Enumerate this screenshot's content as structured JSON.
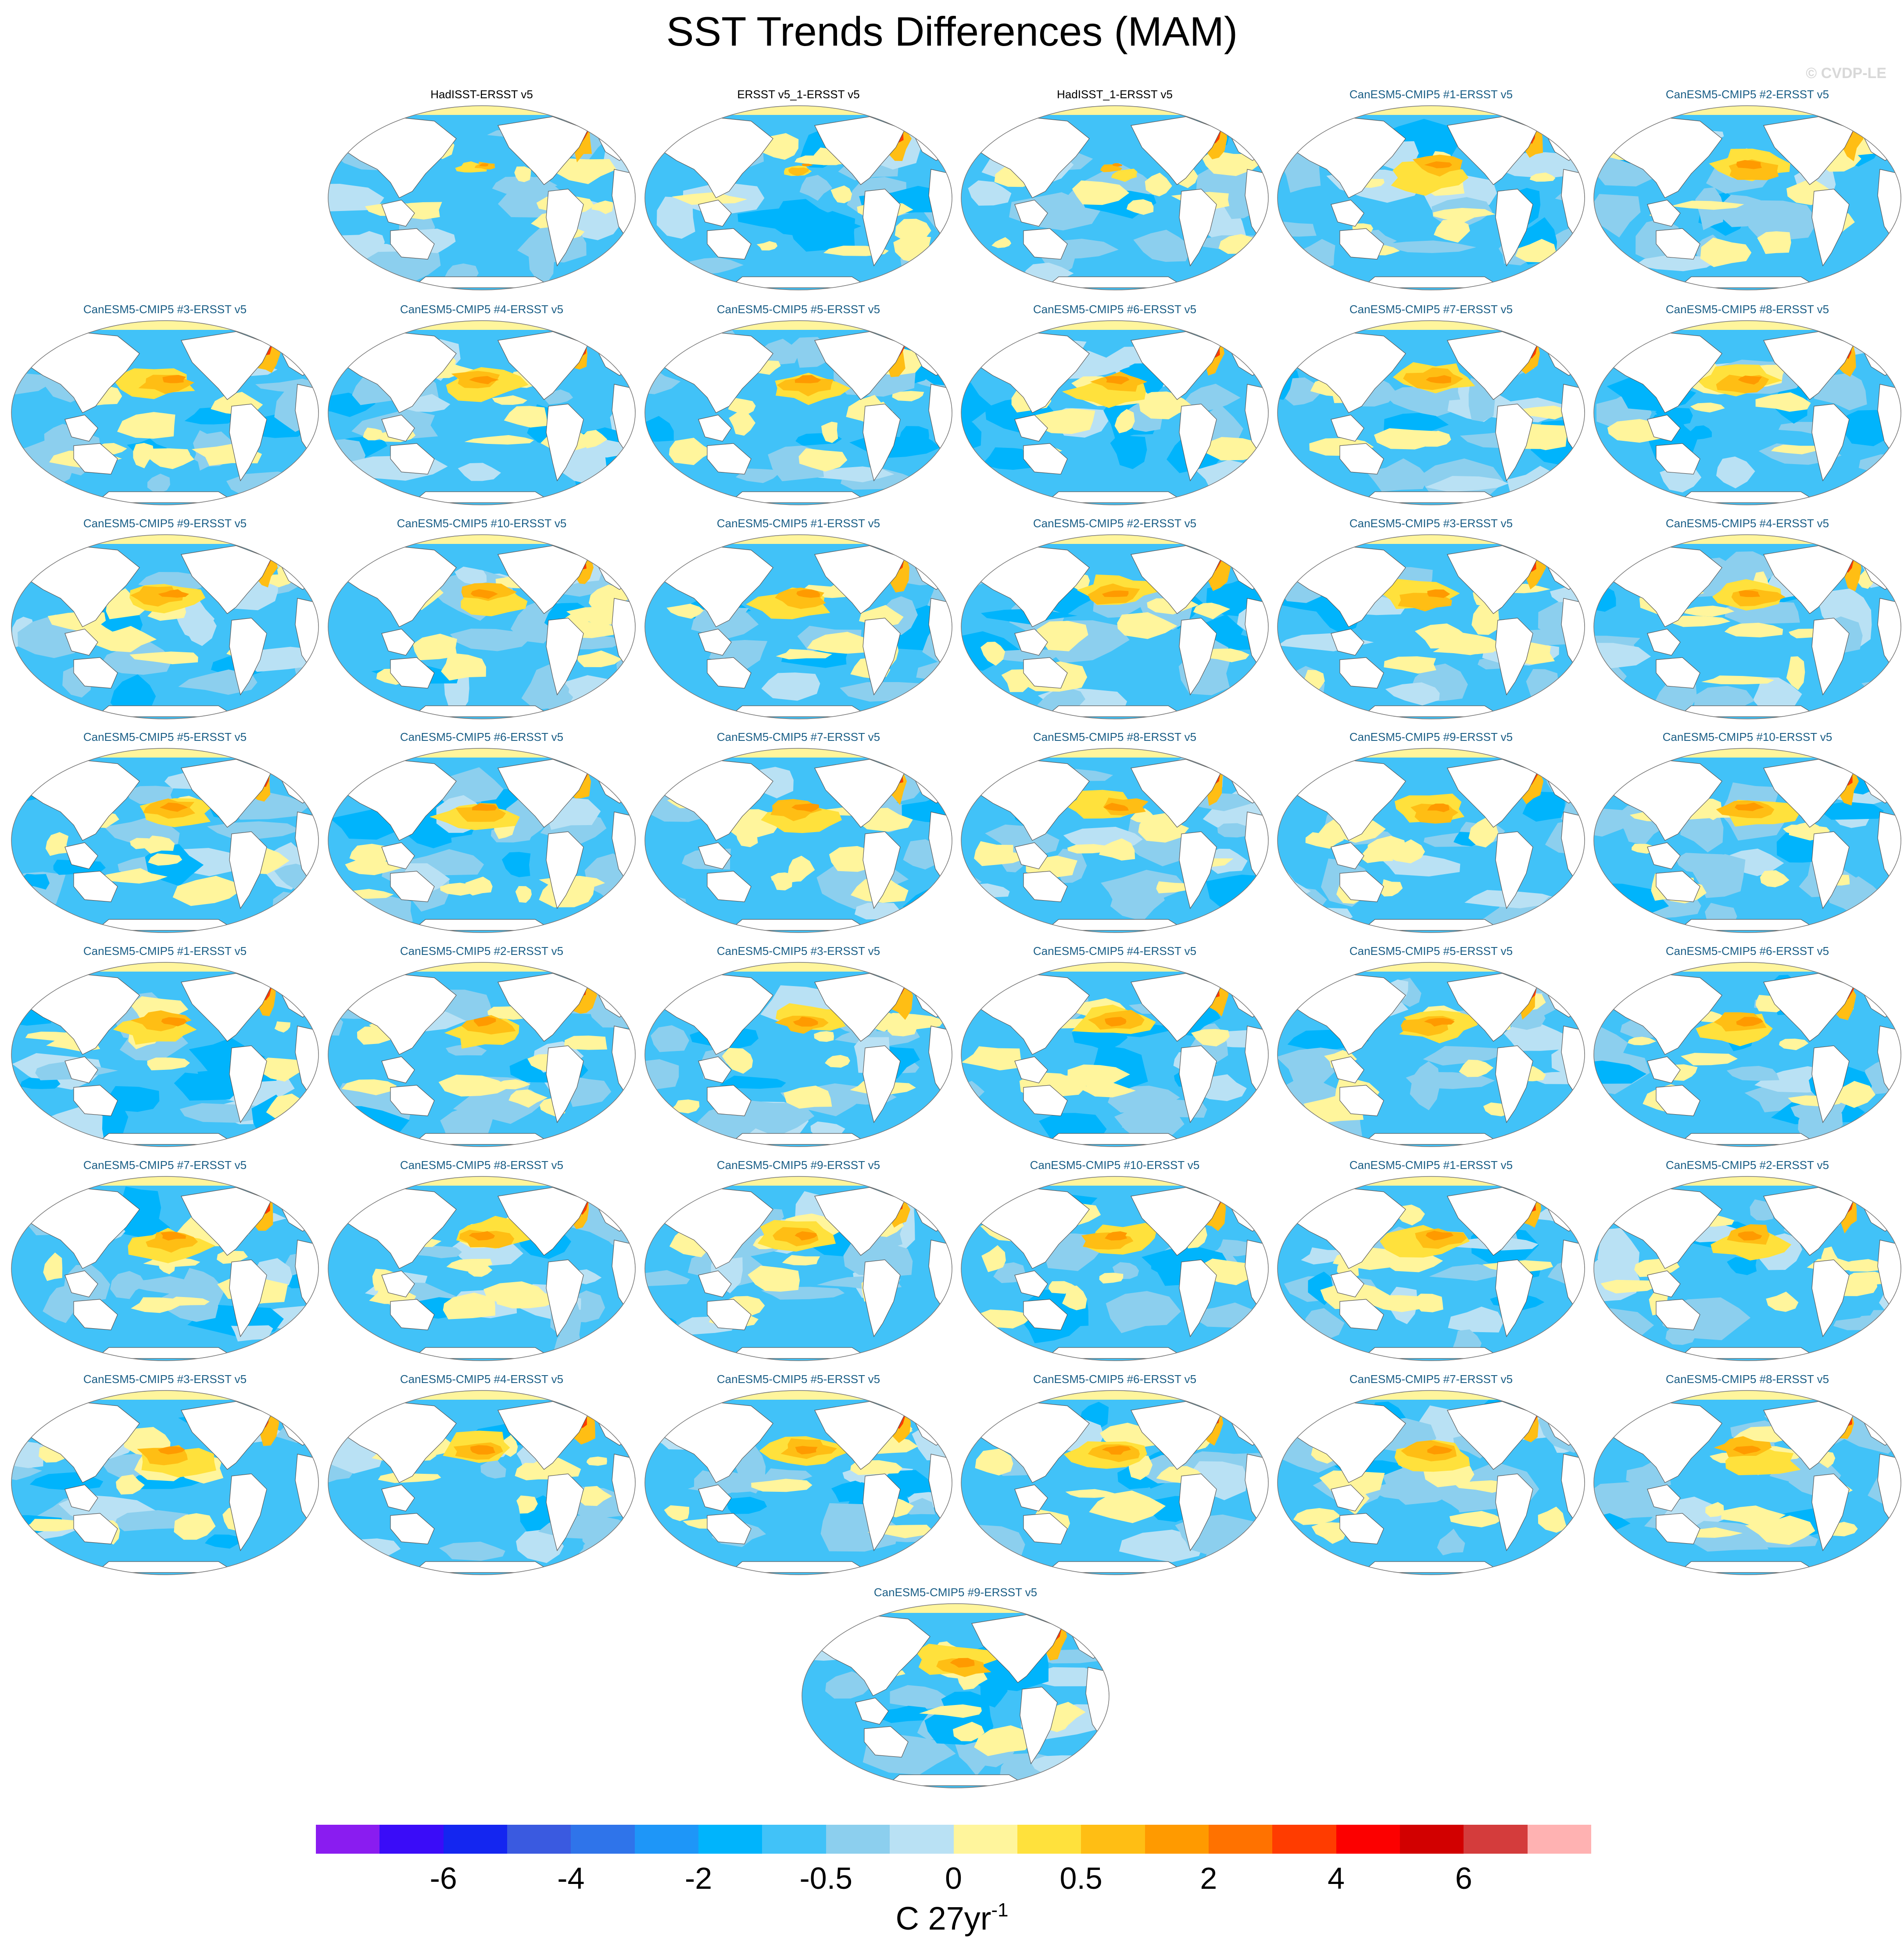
{
  "title": "SST Trends Differences (MAM)",
  "watermark": "© CVDP-LE",
  "units": {
    "base": "C 27yr",
    "exponent": "-1"
  },
  "colorbar": {
    "colors": [
      "#8a1cf0",
      "#3a0cf8",
      "#1426f0",
      "#3a5ae0",
      "#2f74ea",
      "#1e96f8",
      "#00b4fc",
      "#41c2f8",
      "#8ccfee",
      "#b9e1f4",
      "#fff59c",
      "#ffe13c",
      "#ffbe14",
      "#ff9a00",
      "#ff7200",
      "#ff3c00",
      "#fc0000",
      "#d20000",
      "#d43c3c",
      "#ffb2b2"
    ],
    "labels": [
      "-6",
      "-4",
      "-2",
      "-0.5",
      "0",
      "0.5",
      "2",
      "4",
      "6"
    ]
  },
  "panels": [
    {
      "title": "HadISST-ERSST v5",
      "kind": "obs"
    },
    {
      "title": "ERSST v5_1-ERSST v5",
      "kind": "obs"
    },
    {
      "title": "HadISST_1-ERSST v5",
      "kind": "obs"
    },
    {
      "title": "CanESM5-CMIP5 #1-ERSST v5",
      "kind": "model"
    },
    {
      "title": "CanESM5-CMIP5 #2-ERSST v5",
      "kind": "model"
    },
    {
      "title": "CanESM5-CMIP5 #3-ERSST v5",
      "kind": "model"
    },
    {
      "title": "CanESM5-CMIP5 #4-ERSST v5",
      "kind": "model"
    },
    {
      "title": "CanESM5-CMIP5 #5-ERSST v5",
      "kind": "model"
    },
    {
      "title": "CanESM5-CMIP5 #6-ERSST v5",
      "kind": "model"
    },
    {
      "title": "CanESM5-CMIP5 #7-ERSST v5",
      "kind": "model"
    },
    {
      "title": "CanESM5-CMIP5 #8-ERSST v5",
      "kind": "model"
    },
    {
      "title": "CanESM5-CMIP5 #9-ERSST v5",
      "kind": "model"
    },
    {
      "title": "CanESM5-CMIP5 #10-ERSST v5",
      "kind": "model"
    },
    {
      "title": "CanESM5-CMIP5 #1-ERSST v5",
      "kind": "model"
    },
    {
      "title": "CanESM5-CMIP5 #2-ERSST v5",
      "kind": "model"
    },
    {
      "title": "CanESM5-CMIP5 #3-ERSST v5",
      "kind": "model"
    },
    {
      "title": "CanESM5-CMIP5 #4-ERSST v5",
      "kind": "model"
    },
    {
      "title": "CanESM5-CMIP5 #5-ERSST v5",
      "kind": "model"
    },
    {
      "title": "CanESM5-CMIP5 #6-ERSST v5",
      "kind": "model"
    },
    {
      "title": "CanESM5-CMIP5 #7-ERSST v5",
      "kind": "model"
    },
    {
      "title": "CanESM5-CMIP5 #8-ERSST v5",
      "kind": "model"
    },
    {
      "title": "CanESM5-CMIP5 #9-ERSST v5",
      "kind": "model"
    },
    {
      "title": "CanESM5-CMIP5 #10-ERSST v5",
      "kind": "model"
    },
    {
      "title": "CanESM5-CMIP5 #1-ERSST v5",
      "kind": "model"
    },
    {
      "title": "CanESM5-CMIP5 #2-ERSST v5",
      "kind": "model"
    },
    {
      "title": "CanESM5-CMIP5 #3-ERSST v5",
      "kind": "model"
    },
    {
      "title": "CanESM5-CMIP5 #4-ERSST v5",
      "kind": "model"
    },
    {
      "title": "CanESM5-CMIP5 #5-ERSST v5",
      "kind": "model"
    },
    {
      "title": "CanESM5-CMIP5 #6-ERSST v5",
      "kind": "model"
    },
    {
      "title": "CanESM5-CMIP5 #7-ERSST v5",
      "kind": "model"
    },
    {
      "title": "CanESM5-CMIP5 #8-ERSST v5",
      "kind": "model"
    },
    {
      "title": "CanESM5-CMIP5 #9-ERSST v5",
      "kind": "model"
    },
    {
      "title": "CanESM5-CMIP5 #10-ERSST v5",
      "kind": "model"
    },
    {
      "title": "CanESM5-CMIP5 #1-ERSST v5",
      "kind": "model"
    },
    {
      "title": "CanESM5-CMIP5 #2-ERSST v5",
      "kind": "model"
    },
    {
      "title": "CanESM5-CMIP5 #3-ERSST v5",
      "kind": "model"
    },
    {
      "title": "CanESM5-CMIP5 #4-ERSST v5",
      "kind": "model"
    },
    {
      "title": "CanESM5-CMIP5 #5-ERSST v5",
      "kind": "model"
    },
    {
      "title": "CanESM5-CMIP5 #6-ERSST v5",
      "kind": "model"
    },
    {
      "title": "CanESM5-CMIP5 #7-ERSST v5",
      "kind": "model"
    },
    {
      "title": "CanESM5-CMIP5 #8-ERSST v5",
      "kind": "model"
    },
    {
      "title": "CanESM5-CMIP5 #9-ERSST v5",
      "kind": "model"
    }
  ]
}
